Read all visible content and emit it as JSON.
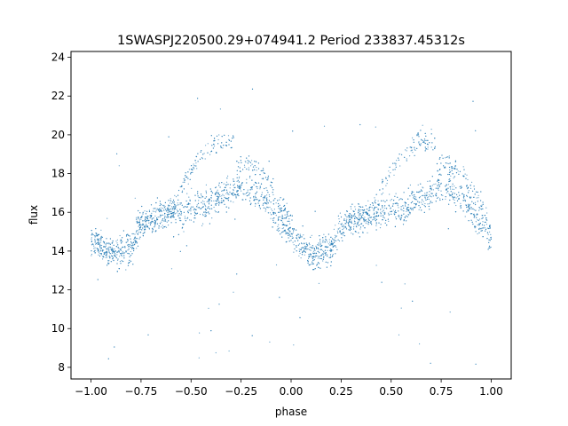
{
  "chart_data": {
    "type": "scatter",
    "title": "1SWASPJ220500.29+074941.2 Period 233837.45312s",
    "xlabel": "phase",
    "ylabel": "flux",
    "xlim": [
      -1.1,
      1.1
    ],
    "ylim": [
      7.4,
      24.3
    ],
    "x_ticks": [
      -1.0,
      -0.75,
      -0.5,
      -0.25,
      0.0,
      0.25,
      0.5,
      0.75,
      1.0
    ],
    "x_tick_labels": [
      "−1.00",
      "−0.75",
      "−0.50",
      "−0.25",
      "0.00",
      "0.25",
      "0.50",
      "0.75",
      "1.00"
    ],
    "y_ticks": [
      8,
      10,
      12,
      14,
      16,
      18,
      20,
      22,
      24
    ],
    "y_tick_labels": [
      "8",
      "10",
      "12",
      "14",
      "16",
      "18",
      "20",
      "22",
      "24"
    ],
    "grid": false,
    "legend": "none",
    "marker_color": "#1f77b4",
    "series": [
      {
        "phase_profile": [
          [
            -1.0,
            14.6
          ],
          [
            -0.9,
            13.8
          ],
          [
            -0.8,
            14.2
          ],
          [
            -0.75,
            15.4
          ],
          [
            -0.65,
            15.8
          ],
          [
            -0.55,
            16.0
          ],
          [
            -0.45,
            16.2
          ],
          [
            -0.35,
            16.8
          ],
          [
            -0.25,
            17.3
          ],
          [
            -0.15,
            16.8
          ],
          [
            -0.05,
            15.5
          ],
          [
            0.05,
            14.3
          ],
          [
            0.1,
            13.8
          ],
          [
            0.2,
            14.2
          ],
          [
            0.25,
            15.4
          ],
          [
            0.35,
            15.8
          ],
          [
            0.45,
            16.0
          ],
          [
            0.55,
            16.2
          ],
          [
            0.65,
            16.8
          ],
          [
            0.75,
            17.3
          ],
          [
            0.85,
            16.8
          ],
          [
            0.95,
            15.5
          ],
          [
            1.0,
            14.6
          ]
        ],
        "upper_branch_peaks": [
          [
            -0.38,
            19.6
          ],
          [
            -0.17,
            18.2
          ],
          [
            0.62,
            19.6
          ],
          [
            0.83,
            18.2
          ]
        ],
        "flux_scatter_range": [
          8.0,
          23.3
        ]
      }
    ]
  }
}
